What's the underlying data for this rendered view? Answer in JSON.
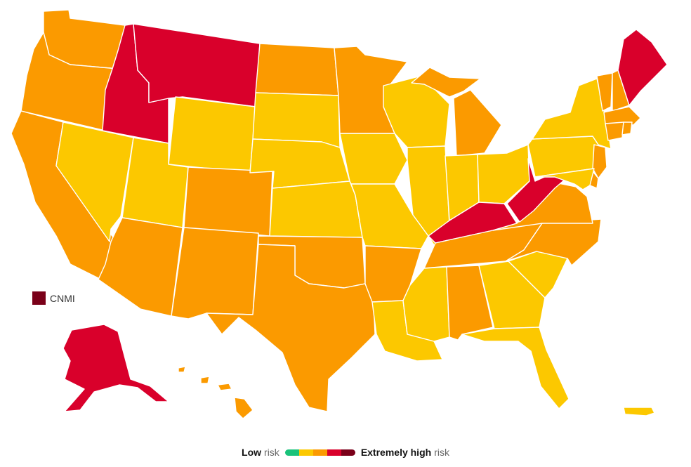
{
  "colors": {
    "low": "#19c27a",
    "moderate": "#fcc800",
    "orange": "#fb9a00",
    "high": "#d9002b",
    "extreme": "#7a0019"
  },
  "legend": {
    "low_word": "Low",
    "low_suffix": "risk",
    "high_word": "Extremely high",
    "high_suffix": "risk",
    "scale": [
      "low",
      "moderate",
      "orange",
      "high",
      "extreme"
    ]
  },
  "cnmi": {
    "label": "CNMI",
    "level": "extreme"
  },
  "states": [
    {
      "code": "WA",
      "level": "orange"
    },
    {
      "code": "OR",
      "level": "orange"
    },
    {
      "code": "CA",
      "level": "orange"
    },
    {
      "code": "ID",
      "level": "high"
    },
    {
      "code": "MT",
      "level": "high"
    },
    {
      "code": "WY",
      "level": "moderate"
    },
    {
      "code": "NV",
      "level": "moderate"
    },
    {
      "code": "UT",
      "level": "moderate"
    },
    {
      "code": "AZ",
      "level": "orange"
    },
    {
      "code": "CO",
      "level": "orange"
    },
    {
      "code": "NM",
      "level": "orange"
    },
    {
      "code": "ND",
      "level": "orange"
    },
    {
      "code": "SD",
      "level": "moderate"
    },
    {
      "code": "NE",
      "level": "moderate"
    },
    {
      "code": "KS",
      "level": "moderate"
    },
    {
      "code": "OK",
      "level": "orange"
    },
    {
      "code": "TX",
      "level": "orange"
    },
    {
      "code": "MN",
      "level": "orange"
    },
    {
      "code": "IA",
      "level": "moderate"
    },
    {
      "code": "MO",
      "level": "moderate"
    },
    {
      "code": "AR",
      "level": "orange"
    },
    {
      "code": "LA",
      "level": "moderate"
    },
    {
      "code": "WI",
      "level": "moderate"
    },
    {
      "code": "IL",
      "level": "moderate"
    },
    {
      "code": "MI",
      "level": "orange"
    },
    {
      "code": "IN",
      "level": "moderate"
    },
    {
      "code": "OH",
      "level": "moderate"
    },
    {
      "code": "KY",
      "level": "high"
    },
    {
      "code": "TN",
      "level": "orange"
    },
    {
      "code": "MS",
      "level": "moderate"
    },
    {
      "code": "AL",
      "level": "orange"
    },
    {
      "code": "GA",
      "level": "moderate"
    },
    {
      "code": "FL",
      "level": "moderate"
    },
    {
      "code": "SC",
      "level": "moderate"
    },
    {
      "code": "NC",
      "level": "orange"
    },
    {
      "code": "VA",
      "level": "orange"
    },
    {
      "code": "WV",
      "level": "high"
    },
    {
      "code": "PA",
      "level": "moderate"
    },
    {
      "code": "NY",
      "level": "moderate"
    },
    {
      "code": "VT",
      "level": "orange"
    },
    {
      "code": "NH",
      "level": "orange"
    },
    {
      "code": "ME",
      "level": "high"
    },
    {
      "code": "MA",
      "level": "orange"
    },
    {
      "code": "CT",
      "level": "orange"
    },
    {
      "code": "RI",
      "level": "orange"
    },
    {
      "code": "NJ",
      "level": "orange"
    },
    {
      "code": "DE",
      "level": "orange"
    },
    {
      "code": "MD",
      "level": "moderate"
    },
    {
      "code": "AK",
      "level": "high"
    },
    {
      "code": "HI",
      "level": "orange"
    },
    {
      "code": "PR",
      "level": "moderate"
    }
  ]
}
